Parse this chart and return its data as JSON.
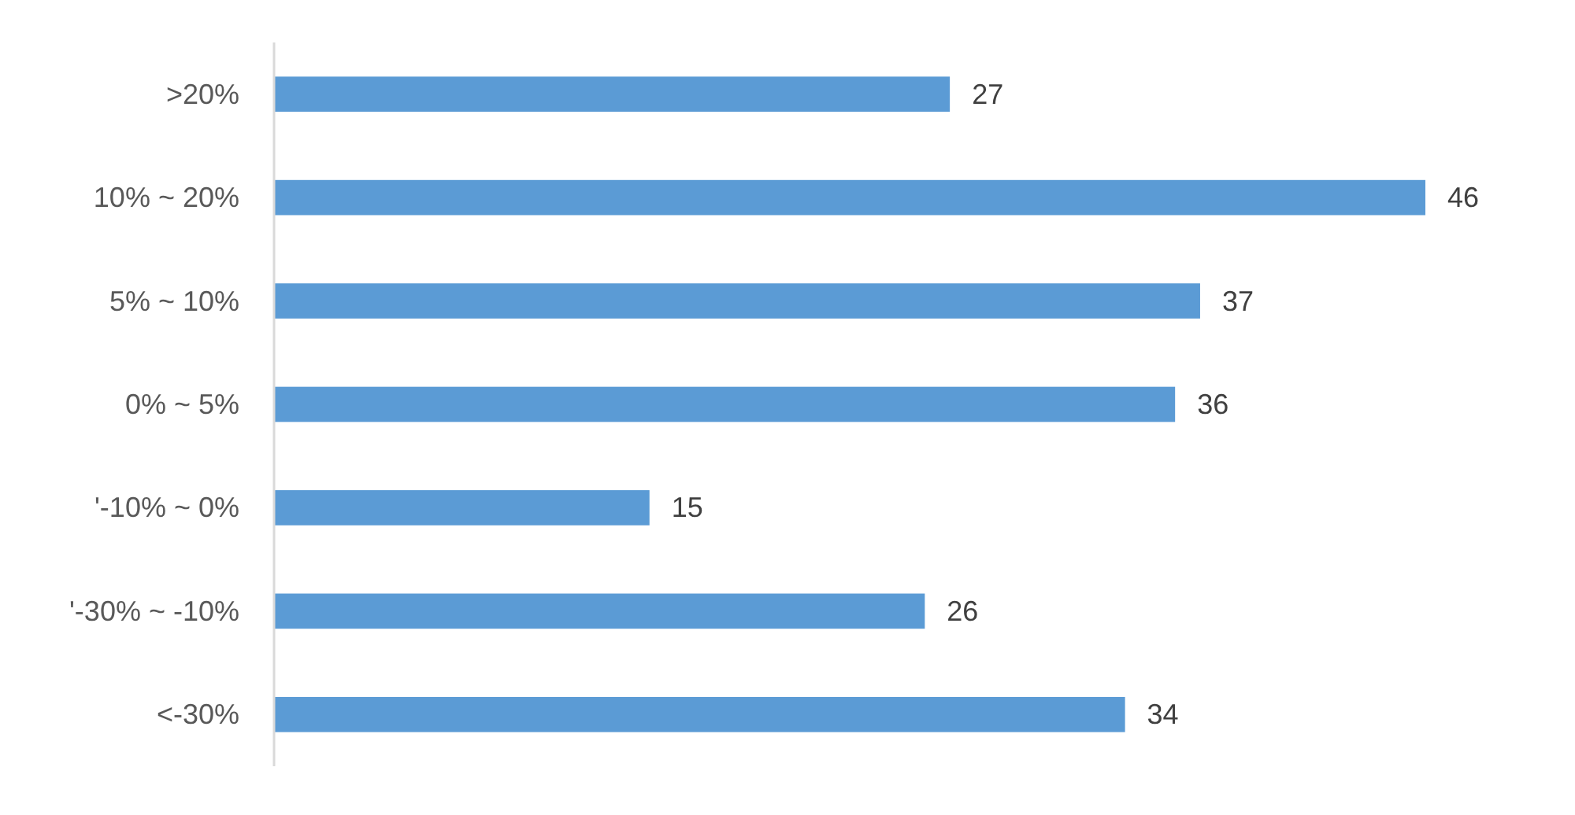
{
  "chart_data": {
    "type": "bar",
    "orientation": "horizontal",
    "categories": [
      ">20%",
      "10% ~ 20%",
      "5% ~ 10%",
      "0% ~ 5%",
      "'-10% ~ 0%",
      "'-30% ~ -10%",
      "<-30%"
    ],
    "values": [
      27,
      46,
      37,
      36,
      15,
      26,
      34
    ],
    "color": "#5b9bd5",
    "xlim": [
      0,
      46
    ],
    "data_labels": true
  }
}
